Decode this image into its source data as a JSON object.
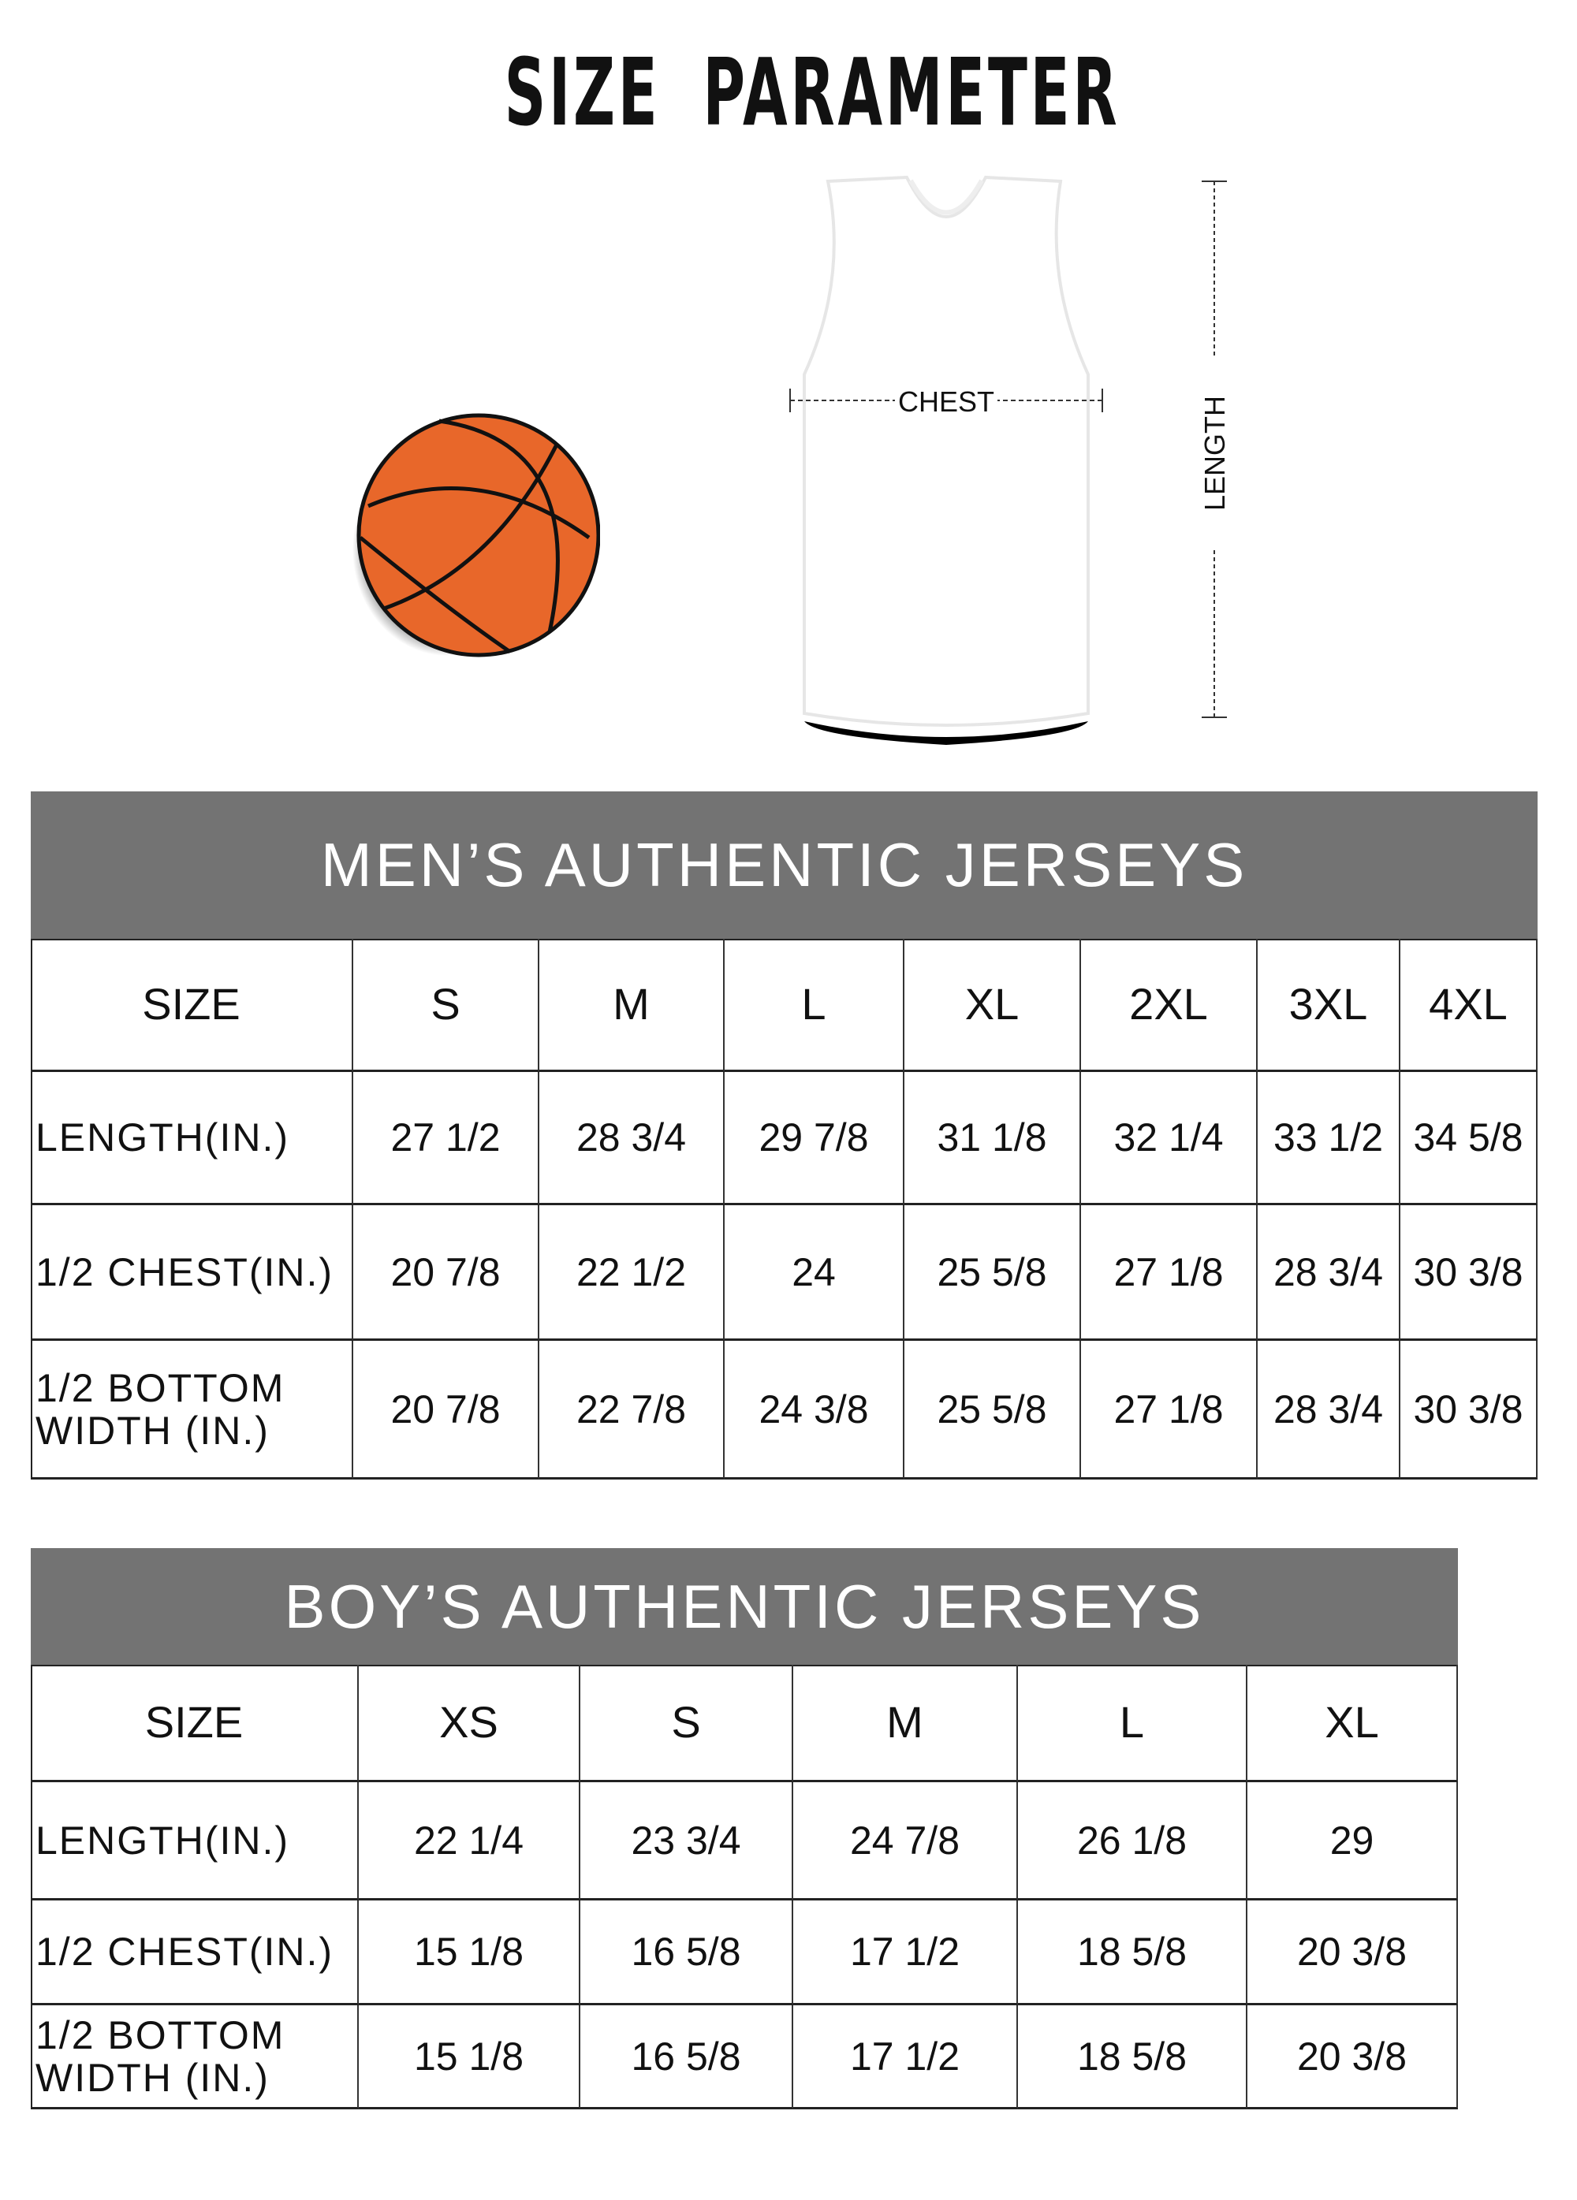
{
  "title": "SIZE PARAMETER",
  "diagram": {
    "chest_label": "CHEST",
    "length_label": "LENGTH"
  },
  "colors": {
    "band": "#737373",
    "ball": "#e8672a"
  },
  "mens": {
    "heading": "MEN’S AUTHENTIC JERSEYS",
    "columns": [
      "SIZE",
      "S",
      "M",
      "L",
      "XL",
      "2XL",
      "3XL",
      "4XL"
    ],
    "rows": [
      {
        "label": "LENGTH(IN.)",
        "values": [
          "27  1/2",
          "28  3/4",
          "29  7/8",
          "31  1/8",
          "32  1/4",
          "33  1/2",
          "34  5/8"
        ]
      },
      {
        "label": "1/2 CHEST(IN.)",
        "values": [
          "20  7/8",
          "22  1/2",
          "24",
          "25  5/8",
          "27  1/8",
          "28  3/4",
          "30  3/8"
        ]
      },
      {
        "label": "1/2 BOTTOM\n WIDTH  (IN.)",
        "values": [
          "20  7/8",
          "22  7/8",
          "24  3/8",
          "25  5/8",
          "27  1/8",
          "28  3/4",
          "30  3/8"
        ]
      }
    ]
  },
  "boys": {
    "heading": "BOY’S AUTHENTIC JERSEYS",
    "columns": [
      "SIZE",
      "XS",
      "S",
      "M",
      "L",
      "XL"
    ],
    "rows": [
      {
        "label": "LENGTH(IN.)",
        "values": [
          "22  1/4",
          "23  3/4",
          "24  7/8",
          "26  1/8",
          "29"
        ]
      },
      {
        "label": "1/2 CHEST(IN.)",
        "values": [
          "15  1/8",
          "16  5/8",
          "17  1/2",
          "18  5/8",
          "20  3/8"
        ]
      },
      {
        "label": "1/2 BOTTOM\n WIDTH  (IN.)",
        "values": [
          "15  1/8",
          "16  5/8",
          "17  1/2",
          "18  5/8",
          "20  3/8"
        ]
      }
    ]
  }
}
